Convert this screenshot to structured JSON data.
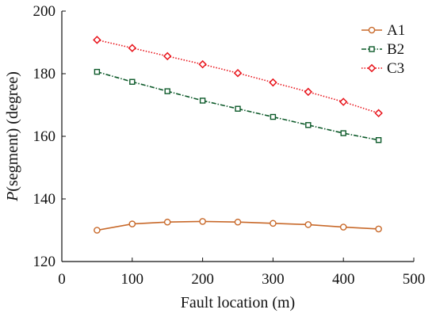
{
  "chart_data": {
    "type": "line",
    "xlabel": "Fault location (m)",
    "ylabel_italic": "P",
    "ylabel_rest": "(segment) (degree)",
    "xlim": [
      0,
      500
    ],
    "ylim": [
      120,
      200
    ],
    "xticks": [
      0,
      100,
      200,
      300,
      400,
      500
    ],
    "yticks": [
      120,
      140,
      160,
      180,
      200
    ],
    "grid": false,
    "legend_position": "top-right",
    "x": [
      50,
      100,
      150,
      200,
      250,
      300,
      350,
      400,
      450
    ],
    "series": [
      {
        "name": "A1",
        "color": "#c8692a",
        "line_style": "solid",
        "marker": "circle",
        "values": [
          130.0,
          132.0,
          132.6,
          132.8,
          132.6,
          132.2,
          131.8,
          131.0,
          130.4
        ]
      },
      {
        "name": "B2",
        "color": "#0d5a2a",
        "line_style": "dash-dot",
        "marker": "square",
        "values": [
          180.6,
          177.4,
          174.4,
          171.4,
          168.8,
          166.2,
          163.6,
          161.0,
          158.8
        ]
      },
      {
        "name": "C3",
        "color": "#e8131a",
        "line_style": "dotted",
        "marker": "diamond",
        "values": [
          190.8,
          188.2,
          185.6,
          183.0,
          180.2,
          177.2,
          174.2,
          171.0,
          167.4
        ]
      }
    ]
  }
}
